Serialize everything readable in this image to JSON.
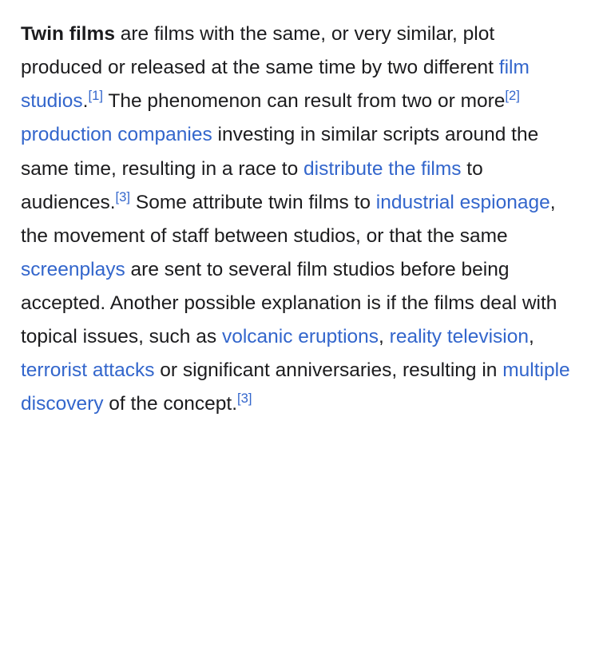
{
  "colors": {
    "text": "#1c1c1e",
    "link": "#3366cc",
    "background": "#ffffff"
  },
  "typography": {
    "font_family": "-apple-system, Helvetica Neue, Arial, sans-serif",
    "font_size_pt": 18,
    "line_height": 1.72,
    "bold_weight": 700
  },
  "paragraph": {
    "bold_lead": "Twin films",
    "t1": " are films with the same, or very similar, plot produced or released at the same time by two different ",
    "link_film_studios": "film studios",
    "t2": ".",
    "ref1": "[1]",
    "t3": " The phenomenon can result from two or more",
    "ref2": "[2]",
    "t4": " ",
    "link_production_companies": "production companies",
    "t5": " investing in similar scripts around the same time, resulting in a race to ",
    "link_distribute": "distribute the films",
    "t6": " to audiences.",
    "ref3a": "[3]",
    "t7": " Some attribute twin films to ",
    "link_industrial_espionage": "industrial espionage",
    "t8": ", the movement of staff between studios, or that the same ",
    "link_screenplays": "screenplays",
    "t9": " are sent to several film studios before being accepted. Another possible explanation is if the films deal with topical issues, such as ",
    "link_volcanic": "volcanic eruptions",
    "t10": ", ",
    "link_reality_tv": "reality television",
    "t11": ", ",
    "link_terrorist": "terrorist attacks",
    "t12": " or significant anniversaries, resulting in ",
    "link_multiple_discovery": "multiple discovery",
    "t13": " of the concept.",
    "ref3b": "[3]"
  }
}
